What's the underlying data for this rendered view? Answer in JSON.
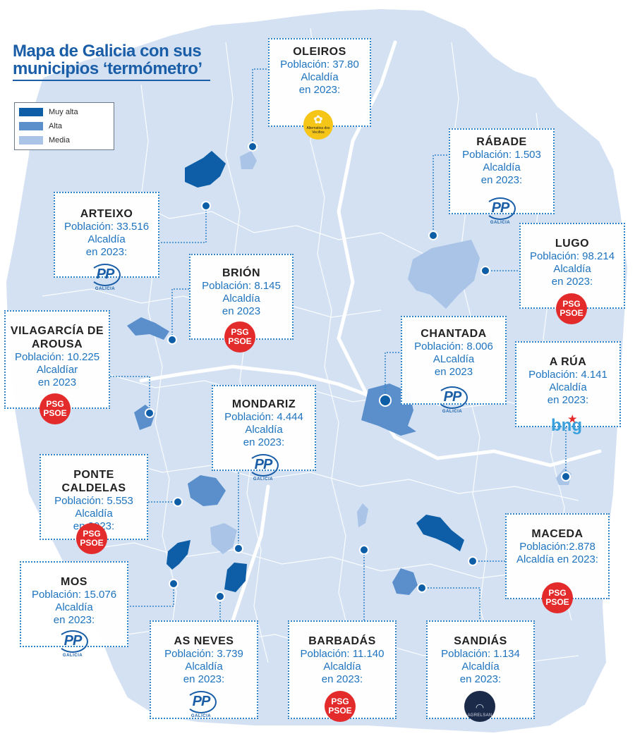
{
  "title": {
    "line1": "Mapa de Galicia con sus",
    "line2": "municipios ‘termómetro’",
    "color": "#1a5ea8"
  },
  "legend": {
    "items": [
      {
        "label": "Muy alta",
        "color": "#0d5ea6"
      },
      {
        "label": "Alta",
        "color": "#5b8fcc"
      },
      {
        "label": "Media",
        "color": "#a9c4e6"
      }
    ]
  },
  "map_colors": {
    "land": "#d3e1f3",
    "muy_alta": "#0d5ea6",
    "alta": "#5b8fcc",
    "media": "#a9c4e6",
    "borders": "#ffffff",
    "marker": "#0d5ea6"
  },
  "municipalities": [
    {
      "name": "OLEIROS",
      "population_line": "Población: 37.80",
      "mayor_line1": "Alcaldía",
      "mayor_line2": "en 2023:",
      "logo": "alternativa-dos-veciños",
      "logo_text": "Alternativa dos Veciños"
    },
    {
      "name": "RÁBADE",
      "population_line": "Población: 1.503",
      "mayor_line1": "Alcaldía",
      "mayor_line2": "en 2023:",
      "logo": "pp-galicia",
      "logo_text": "PP",
      "logo_sub": "GALICIA"
    },
    {
      "name": "ARTEIXO",
      "population_line": "Población: 33.516",
      "mayor_line1": "Alcaldía",
      "mayor_line2": "en 2023:",
      "logo": "pp-galicia",
      "logo_text": "PP",
      "logo_sub": "GALICIA"
    },
    {
      "name": "LUGO",
      "population_line": "Población: 98.214",
      "mayor_line1": "Alcaldía",
      "mayor_line2": "en 2023:",
      "logo": "psg-psoe",
      "logo_text1": "PSG",
      "logo_text2": "PSOE"
    },
    {
      "name": "BRIÓN",
      "population_line": "Población: 8.145",
      "mayor_line1": "Alcaldía",
      "mayor_line2": "en 2023",
      "logo": "psg-psoe",
      "logo_text1": "PSG",
      "logo_text2": "PSOE"
    },
    {
      "name": "VILAGARCÍA DE",
      "name2": "AROUSA",
      "population_line": "Población: 10.225",
      "mayor_line1": "Alcaldíar",
      "mayor_line2": "en 2023",
      "logo": "psg-psoe",
      "logo_text1": "PSG",
      "logo_text2": "PSOE"
    },
    {
      "name": "CHANTADA",
      "population_line": "Población: 8.006",
      "mayor_line1": "ALcaldía",
      "mayor_line2": "en 2023",
      "logo": "pp-galicia",
      "logo_text": "PP",
      "logo_sub": "GALICIA"
    },
    {
      "name": "A RÚA",
      "population_line": "Población: 4.141",
      "mayor_line1": "Alcaldía",
      "mayor_line2": "en 2023:",
      "logo": "bng",
      "logo_text": "bng"
    },
    {
      "name": "MONDARIZ",
      "population_line": "Población: 4.444",
      "mayor_line1": "Alcaldía",
      "mayor_line2": "en 2023:",
      "logo": "pp-galicia",
      "logo_text": "PP",
      "logo_sub": "GALICIA"
    },
    {
      "name": "PONTE CALDELAS",
      "population_line": "Población: 5.553",
      "mayor_line1": "Alcaldía",
      "mayor_line2": "en 2023:",
      "logo": "psg-psoe",
      "logo_text1": "PSG",
      "logo_text2": "PSOE"
    },
    {
      "name": "MACEDA",
      "population_line": "Población:2.878",
      "mayor_line1": "Alcaldía en 2023:",
      "mayor_line2": "",
      "logo": "psg-psoe",
      "logo_text1": "PSG",
      "logo_text2": "PSOE"
    },
    {
      "name": "MOS",
      "population_line": "Población: 15.076",
      "mayor_line1": "Alcaldía",
      "mayor_line2": "en 2023:",
      "logo": "pp-galicia",
      "logo_text": "PP",
      "logo_sub": "GALICIA"
    },
    {
      "name": "AS NEVES",
      "population_line": "Población: 3.739",
      "mayor_line1": "Alcaldía",
      "mayor_line2": "en 2023:",
      "logo": "pp-galicia",
      "logo_text": "PP",
      "logo_sub": "GALICIA"
    },
    {
      "name": "BARBADÁS",
      "population_line": "Población: 11.140",
      "mayor_line1": "Alcaldía",
      "mayor_line2": "en 2023:",
      "logo": "psg-psoe",
      "logo_text1": "PSG",
      "logo_text2": "PSOE"
    },
    {
      "name": "SANDIÁS",
      "population_line": "Población: 1.134",
      "mayor_line1": "Alcaldía",
      "mayor_line2": "en 2023:",
      "logo": "agrelsan",
      "logo_text": "AGRELSAN"
    }
  ]
}
